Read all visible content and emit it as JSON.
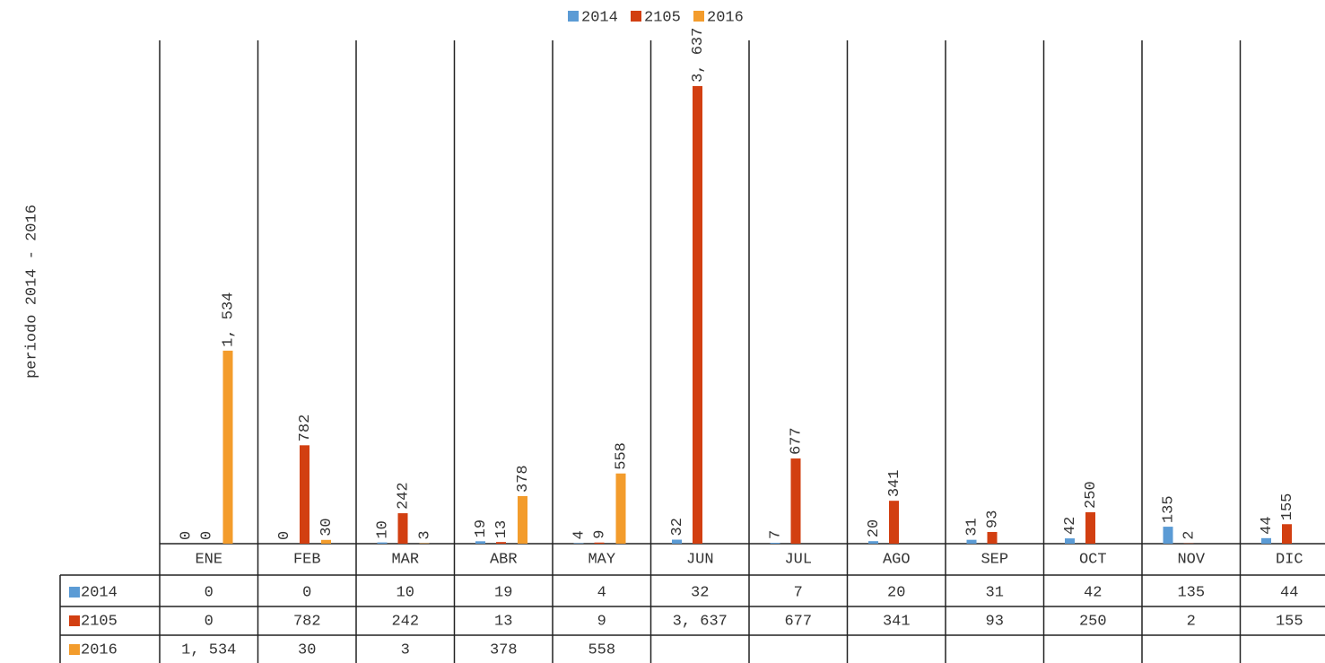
{
  "chart_data": {
    "type": "bar",
    "y_axis_label": "periodo 2014 - 2016",
    "categories": [
      "ENE",
      "FEB",
      "MAR",
      "ABR",
      "MAY",
      "JUN",
      "JUL",
      "AGO",
      "SEP",
      "OCT",
      "NOV",
      "DIC"
    ],
    "series": [
      {
        "name": "2014",
        "color": "#5b9bd5",
        "values": [
          0,
          0,
          10,
          19,
          4,
          32,
          7,
          20,
          31,
          42,
          135,
          44
        ]
      },
      {
        "name": "2105",
        "color": "#d23f11",
        "values": [
          0,
          782,
          242,
          13,
          9,
          3637,
          677,
          341,
          93,
          250,
          2,
          155
        ],
        "value_labels": [
          "0",
          "782",
          "242",
          "13",
          "9",
          "3, 637",
          "677",
          "341",
          "93",
          "250",
          "2",
          "155"
        ]
      },
      {
        "name": "2016",
        "color": "#f39c2c",
        "values": [
          1534,
          30,
          3,
          378,
          558,
          null,
          null,
          null,
          null,
          null,
          null,
          null
        ],
        "value_labels": [
          "1, 534",
          "30",
          "3",
          "378",
          "558",
          null,
          null,
          null,
          null,
          null,
          null,
          null
        ]
      }
    ],
    "ylim": [
      0,
      4000
    ],
    "legend": "top"
  }
}
